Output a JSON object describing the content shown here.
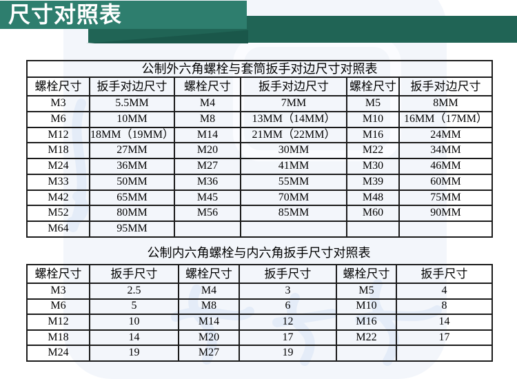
{
  "banner": {
    "title": "尺寸对照表",
    "title_bg_color": "#2e7e6e",
    "band_color": "#206455",
    "fold_color": "#1a574a",
    "title_text_color": "#ffffff"
  },
  "watermark": {
    "tint_color": "#f3f6fb",
    "stroke_color": "#e4ecf8"
  },
  "table1": {
    "title": "公制外六角螺栓与套筒扳手对边尺寸对照表",
    "headers": [
      "螺栓尺寸",
      "扳手对边尺寸",
      "螺栓尺寸",
      "扳手对边尺寸",
      "螺栓尺寸",
      "扳手对边尺寸"
    ],
    "rows": [
      [
        "M3",
        "5.5MM",
        "M4",
        "7MM",
        "M5",
        "8MM"
      ],
      [
        "M6",
        "10MM",
        "M8",
        "13MM（14MM）",
        "M10",
        "16MM（17MM）"
      ],
      [
        "M12",
        "18MM（19MM）",
        "M14",
        "21MM（22MM）",
        "M16",
        "24MM"
      ],
      [
        "M18",
        "27MM",
        "M20",
        "30MM",
        "M22",
        "34MM"
      ],
      [
        "M24",
        "36MM",
        "M27",
        "41MM",
        "M30",
        "46MM"
      ],
      [
        "M33",
        "50MM",
        "M36",
        "55MM",
        "M39",
        "60MM"
      ],
      [
        "M42",
        "65MM",
        "M45",
        "70MM",
        "M48",
        "75MM"
      ],
      [
        "M52",
        "80MM",
        "M56",
        "85MM",
        "M60",
        "90MM"
      ],
      [
        "M64",
        "95MM",
        "",
        "",
        "",
        ""
      ]
    ]
  },
  "table2": {
    "title": "公制内六角螺栓与内六角扳手尺寸对照表",
    "headers": [
      "螺栓尺寸",
      "扳手尺寸",
      "螺栓尺寸",
      "扳手尺寸",
      "螺栓尺寸",
      "扳手尺寸"
    ],
    "rows": [
      [
        "M3",
        "2.5",
        "M4",
        "3",
        "M5",
        "4"
      ],
      [
        "M6",
        "5",
        "M8",
        "6",
        "M10",
        "8"
      ],
      [
        "M12",
        "10",
        "M14",
        "12",
        "M16",
        "14"
      ],
      [
        "M18",
        "14",
        "M20",
        "17",
        "M22",
        "17"
      ],
      [
        "M24",
        "19",
        "M27",
        "19",
        "",
        ""
      ]
    ]
  }
}
